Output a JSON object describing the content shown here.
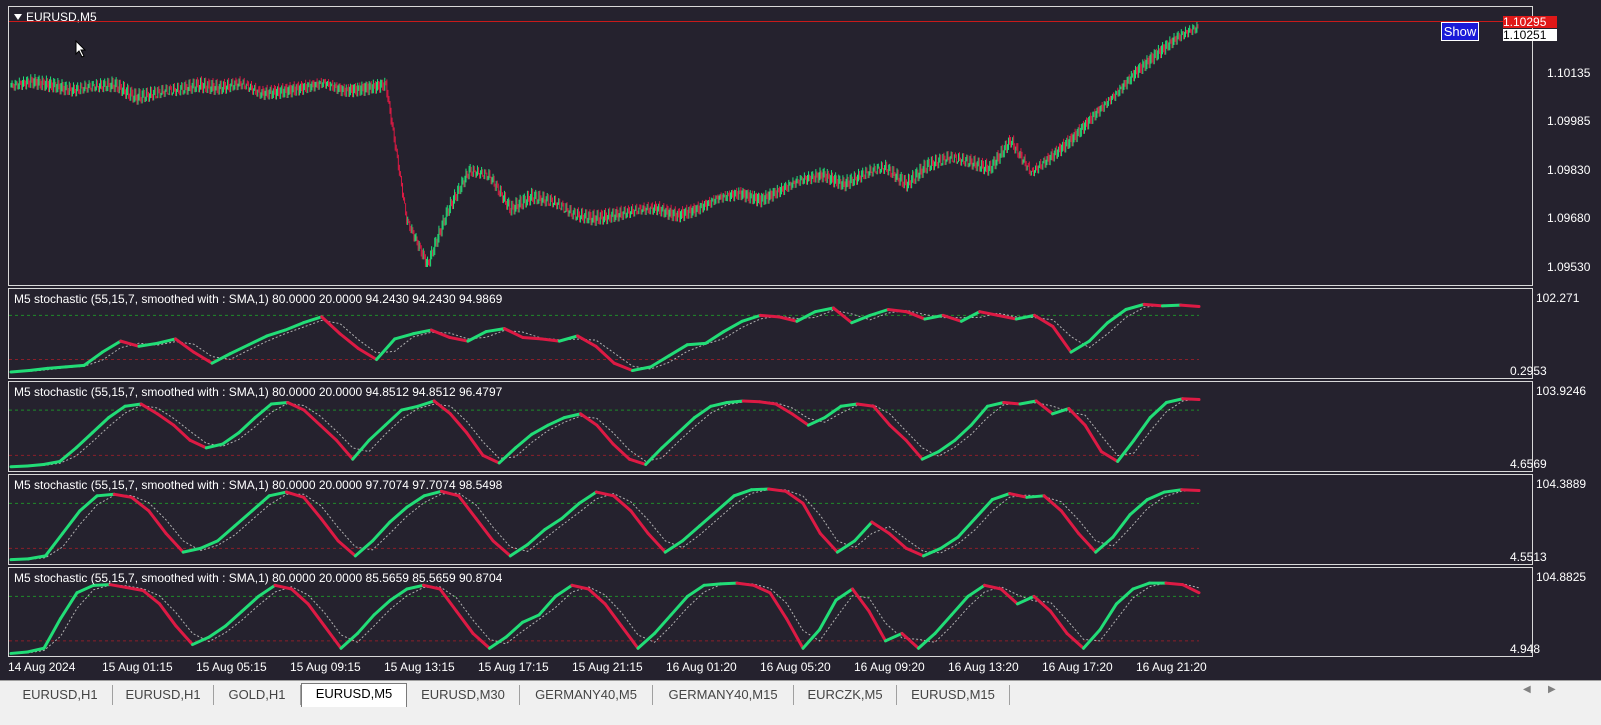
{
  "main": {
    "title": "EURUSD,M5",
    "price_labels": [
      "1.10135",
      "1.09985",
      "1.09830",
      "1.09680",
      "1.09530"
    ],
    "current_price_bid": "1.10295",
    "current_price_ask": "1.10251",
    "show_button": "Show"
  },
  "panes": [
    {
      "title": "M5 stochastic (55,15,7, smoothed with : SMA,1) 80.0000 20.0000 94.2430 94.2430 94.9869",
      "max": "102.271",
      "min": "0.2953"
    },
    {
      "title": "M5 stochastic (55,15,7, smoothed with : SMA,1) 80.0000 20.0000 94.8512 94.8512 96.4797",
      "max": "103.9246",
      "min": "4.6569"
    },
    {
      "title": "M5 stochastic (55,15,7, smoothed with : SMA,1) 80.0000 20.0000 97.7074 97.7074 98.5498",
      "max": "104.3889",
      "min": "4.5513"
    },
    {
      "title": "M5 stochastic (55,15,7, smoothed with : SMA,1) 80.0000 20.0000 85.5659 85.5659 90.8704",
      "max": "104.8825",
      "min": "4.948"
    }
  ],
  "x_labels": [
    "14 Aug 2024",
    "15 Aug 01:15",
    "15 Aug 05:15",
    "15 Aug 09:15",
    "15 Aug 13:15",
    "15 Aug 17:15",
    "15 Aug 21:15",
    "16 Aug 01:20",
    "16 Aug 05:20",
    "16 Aug 09:20",
    "16 Aug 13:20",
    "16 Aug 17:20",
    "16 Aug 21:20"
  ],
  "tabs": [
    "EURUSD,H1",
    "EURUSD,H1",
    "GOLD,H1",
    "EURUSD,M5",
    "EURUSD,M30",
    "GERMANY40,M5",
    "GERMANY40,M15",
    "EURCZK,M5",
    "EURUSD,M15"
  ],
  "active_tab": "EURUSD,M5",
  "colors": {
    "background": "#25222e",
    "up": "#22dd77",
    "down": "#dd1a44",
    "level": "#1f8a2a",
    "signal": "#b0b0b0",
    "price_line": "#c81a1a",
    "show_button": "#1a1ad8"
  },
  "chart_data": [
    {
      "type": "line",
      "series": [
        {
          "values": [
            1.1011,
            1.1013,
            1.1012,
            1.101,
            1.1011,
            1.1012,
            1.1008,
            1.1009,
            1.101,
            1.1012,
            1.1011,
            1.1012,
            1.1009,
            1.101,
            1.1011,
            1.1012,
            1.101,
            1.1011,
            1.1012,
            1.0968,
            1.0954,
            1.0972,
            1.0984,
            1.0982,
            1.0972,
            1.0976,
            1.0974,
            1.097,
            1.0969,
            1.097,
            1.0971,
            1.0972,
            1.097,
            1.0972,
            1.0975,
            1.0977,
            1.0975,
            1.0978,
            1.0981,
            1.0983,
            1.098,
            1.0983,
            1.0985,
            1.098,
            1.0986,
            1.0988,
            1.0987,
            1.0985,
            1.0994,
            1.0983,
            1.0989,
            1.0995,
            1.1002,
            1.1008,
            1.1016,
            1.1022,
            1.1027,
            1.103
          ]
        }
      ],
      "ylim": [
        1.0948,
        1.1035
      ]
    },
    {
      "type": "line",
      "series": [
        {
          "values": [
            3,
            5,
            8,
            10,
            12,
            30,
            45,
            38,
            42,
            48,
            30,
            15,
            28,
            40,
            52,
            60,
            70,
            78,
            55,
            35,
            20,
            48,
            55,
            60,
            50,
            45,
            58,
            62,
            50,
            48,
            45,
            52,
            38,
            15,
            5,
            10,
            25,
            40,
            42,
            58,
            72,
            80,
            78,
            72,
            85,
            90,
            70,
            80,
            88,
            85,
            75,
            80,
            72,
            85,
            80,
            75,
            80,
            65,
            30,
            45,
            70,
            88,
            95,
            93,
            94,
            92
          ]
        }
      ],
      "ylim": [
        0.2953,
        102.271
      ]
    },
    {
      "type": "line",
      "series": [
        {
          "values": [
            5,
            6,
            8,
            12,
            30,
            50,
            70,
            85,
            88,
            75,
            60,
            40,
            30,
            35,
            50,
            70,
            88,
            90,
            80,
            60,
            40,
            15,
            40,
            60,
            80,
            85,
            92,
            75,
            50,
            20,
            10,
            30,
            48,
            60,
            70,
            75,
            60,
            35,
            15,
            8,
            30,
            50,
            70,
            85,
            90,
            92,
            91,
            88,
            75,
            60,
            70,
            85,
            88,
            85,
            60,
            40,
            15,
            25,
            40,
            60,
            85,
            90,
            88,
            92,
            75,
            82,
            60,
            25,
            12,
            40,
            70,
            90,
            95,
            94
          ]
        }
      ],
      "ylim": [
        4.6569,
        103.9246
      ]
    },
    {
      "type": "line",
      "series": [
        {
          "values": [
            5,
            6,
            10,
            40,
            70,
            90,
            92,
            88,
            70,
            40,
            15,
            20,
            30,
            50,
            70,
            90,
            95,
            88,
            60,
            30,
            10,
            30,
            55,
            75,
            90,
            96,
            90,
            60,
            30,
            10,
            25,
            45,
            60,
            80,
            95,
            90,
            70,
            40,
            15,
            30,
            50,
            70,
            90,
            98,
            99,
            96,
            80,
            40,
            15,
            30,
            55,
            40,
            20,
            10,
            20,
            35,
            60,
            85,
            93,
            88,
            90,
            70,
            40,
            15,
            35,
            65,
            85,
            95,
            98,
            97
          ]
        }
      ],
      "ylim": [
        4.5513,
        104.3889
      ]
    },
    {
      "type": "line",
      "series": [
        {
          "values": [
            3,
            5,
            10,
            50,
            85,
            95,
            96,
            92,
            88,
            70,
            40,
            15,
            25,
            40,
            60,
            80,
            95,
            90,
            70,
            40,
            10,
            30,
            55,
            75,
            90,
            95,
            90,
            60,
            30,
            10,
            25,
            45,
            55,
            80,
            95,
            90,
            70,
            40,
            10,
            30,
            55,
            80,
            95,
            97,
            98,
            95,
            85,
            50,
            10,
            35,
            75,
            90,
            60,
            20,
            30,
            10,
            30,
            55,
            80,
            95,
            90,
            70,
            80,
            60,
            30,
            10,
            35,
            70,
            90,
            98,
            98,
            96,
            85
          ]
        }
      ],
      "ylim": [
        4.948,
        104.8825
      ]
    }
  ]
}
